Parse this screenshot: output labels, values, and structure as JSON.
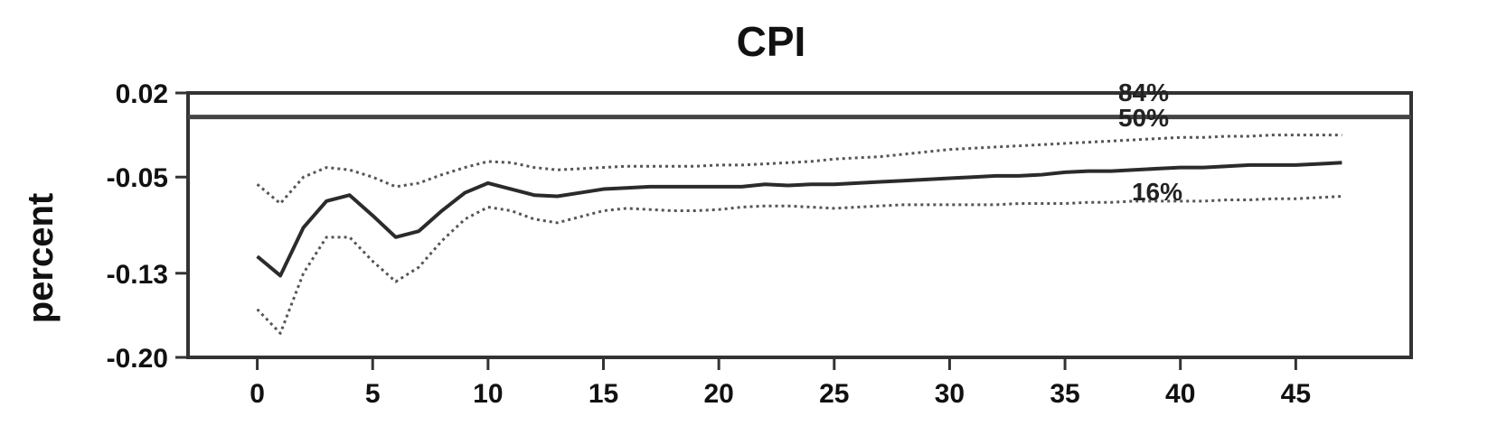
{
  "chart_data": {
    "type": "line",
    "title": "CPI",
    "xlabel": "",
    "ylabel": "percent",
    "xlim": [
      -3,
      50
    ],
    "ylim": [
      -0.2,
      0.02
    ],
    "xticks": [
      "0",
      "5",
      "10",
      "15",
      "20",
      "25",
      "30",
      "35",
      "40",
      "45"
    ],
    "yticks": [
      "0.02",
      "-0.05",
      "-0.13",
      "-0.20"
    ],
    "reference_line": 0,
    "grid": false,
    "legend": "none",
    "annotations": [
      "84%",
      "50%",
      "16%"
    ],
    "x": [
      0,
      1,
      2,
      3,
      4,
      5,
      6,
      7,
      8,
      9,
      10,
      11,
      12,
      13,
      14,
      15,
      16,
      17,
      18,
      19,
      20,
      21,
      22,
      23,
      24,
      25,
      26,
      27,
      28,
      29,
      30,
      31,
      32,
      33,
      34,
      35,
      36,
      37,
      38,
      39,
      40,
      41,
      42,
      43,
      44,
      45,
      46,
      47
    ],
    "series": [
      {
        "name": "84%",
        "style": "dotted",
        "values": [
          -0.056,
          -0.072,
          -0.05,
          -0.042,
          -0.044,
          -0.05,
          -0.058,
          -0.055,
          -0.048,
          -0.042,
          -0.037,
          -0.038,
          -0.042,
          -0.044,
          -0.043,
          -0.042,
          -0.041,
          -0.041,
          -0.041,
          -0.041,
          -0.04,
          -0.04,
          -0.039,
          -0.038,
          -0.037,
          -0.035,
          -0.034,
          -0.033,
          -0.031,
          -0.029,
          -0.027,
          -0.026,
          -0.025,
          -0.024,
          -0.023,
          -0.022,
          -0.021,
          -0.02,
          -0.019,
          -0.018,
          -0.017,
          -0.017,
          -0.016,
          -0.016,
          -0.015,
          -0.015,
          -0.015,
          -0.015
        ]
      },
      {
        "name": "50%",
        "style": "solid",
        "values": [
          -0.116,
          -0.132,
          -0.092,
          -0.07,
          -0.065,
          -0.082,
          -0.1,
          -0.095,
          -0.078,
          -0.063,
          -0.055,
          -0.06,
          -0.065,
          -0.066,
          -0.063,
          -0.06,
          -0.059,
          -0.058,
          -0.058,
          -0.058,
          -0.058,
          -0.058,
          -0.056,
          -0.057,
          -0.056,
          -0.056,
          -0.055,
          -0.054,
          -0.053,
          -0.052,
          -0.051,
          -0.05,
          -0.049,
          -0.049,
          -0.048,
          -0.046,
          -0.045,
          -0.045,
          -0.044,
          -0.043,
          -0.042,
          -0.042,
          -0.041,
          -0.04,
          -0.04,
          -0.04,
          -0.039,
          -0.038
        ]
      },
      {
        "name": "16%",
        "style": "dotted",
        "values": [
          -0.16,
          -0.18,
          -0.13,
          -0.1,
          -0.1,
          -0.12,
          -0.137,
          -0.125,
          -0.103,
          -0.085,
          -0.075,
          -0.078,
          -0.085,
          -0.088,
          -0.083,
          -0.078,
          -0.076,
          -0.077,
          -0.078,
          -0.078,
          -0.077,
          -0.075,
          -0.074,
          -0.074,
          -0.075,
          -0.076,
          -0.075,
          -0.074,
          -0.073,
          -0.073,
          -0.073,
          -0.073,
          -0.073,
          -0.072,
          -0.072,
          -0.072,
          -0.071,
          -0.071,
          -0.07,
          -0.07,
          -0.07,
          -0.07,
          -0.069,
          -0.069,
          -0.068,
          -0.068,
          -0.067,
          -0.066
        ]
      }
    ]
  }
}
